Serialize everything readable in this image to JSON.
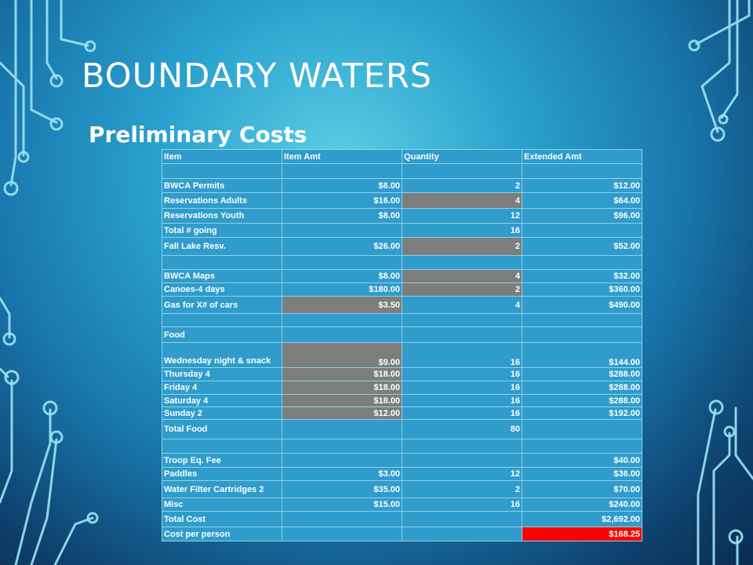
{
  "slide": {
    "title": "BOUNDARY WATERS",
    "subtitle": "Preliminary Costs"
  },
  "colors": {
    "highlight_gray": "#7d7d7d",
    "highlight_red": "#ff0000",
    "cell_blue": "#2f9ccb"
  },
  "table": {
    "headers": [
      "Item",
      "Item Amt",
      "Quantity",
      "Extended Amt"
    ],
    "rows": [
      {
        "item": "",
        "amt": "",
        "qty": "",
        "ext": "",
        "h": 19
      },
      {
        "item": "BWCA Permits",
        "amt": "$6.00",
        "qty": "2",
        "ext": "$12.00",
        "h": 18
      },
      {
        "item": "Reservations Adults",
        "amt": "$16.00",
        "qty": "4",
        "ext": "$64.00",
        "h": 20,
        "gray": [
          "qty"
        ]
      },
      {
        "item": "Reservations Youth",
        "amt": "$8.00",
        "qty": "12",
        "ext": "$96.00",
        "h": 19
      },
      {
        "item": "Total # going",
        "amt": "",
        "qty": "16",
        "ext": "",
        "h": 18
      },
      {
        "item": "Fall Lake Resv.",
        "amt": "$26.00",
        "qty": "2",
        "ext": "$52.00",
        "h": 23,
        "gray": [
          "qty"
        ]
      },
      {
        "item": "",
        "amt": "",
        "qty": "",
        "ext": "",
        "h": 18
      },
      {
        "item": "BWCA Maps",
        "amt": "$8.00",
        "qty": "4",
        "ext": "$32.00",
        "h": 17,
        "gray": [
          "qty"
        ]
      },
      {
        "item": "Canoes-4 days",
        "amt": "$180.00",
        "qty": "2",
        "ext": "$360.00",
        "h": 17,
        "gray": [
          "qty"
        ]
      },
      {
        "item": "Gas for X# of cars",
        "amt": "$3.50",
        "qty": "4",
        "ext": "$490.00",
        "h": 22,
        "gray": [
          "amt"
        ]
      },
      {
        "item": "",
        "amt": "",
        "qty": "",
        "ext": "",
        "h": 17
      },
      {
        "item": "Food",
        "amt": "",
        "qty": "",
        "ext": "",
        "h": 20
      },
      {
        "item": "Wednesday night & snack",
        "amt": "$9.00",
        "qty": "16",
        "ext": "$144.00",
        "h": 32,
        "gray": [
          "amt"
        ],
        "wrap": true
      },
      {
        "item": "Thursday 4",
        "amt": "$18.00",
        "qty": "16",
        "ext": "$288.00",
        "h": 17,
        "gray": [
          "amt"
        ]
      },
      {
        "item": "Friday 4",
        "amt": "$18.00",
        "qty": "16",
        "ext": "$288.00",
        "h": 17,
        "gray": [
          "amt"
        ]
      },
      {
        "item": "Saturday 4",
        "amt": "$18.00",
        "qty": "16",
        "ext": "$288.00",
        "h": 16,
        "gray": [
          "amt"
        ]
      },
      {
        "item": "Sunday 2",
        "amt": "$12.00",
        "qty": "16",
        "ext": "$192.00",
        "h": 16,
        "gray": [
          "amt"
        ]
      },
      {
        "item": "Total Food",
        "amt": "",
        "qty": "80",
        "ext": "",
        "h": 25
      },
      {
        "item": "",
        "amt": "",
        "qty": "",
        "ext": "",
        "h": 18
      },
      {
        "item": "Troop Eq. Fee",
        "amt": "",
        "qty": "",
        "ext": "$40.00",
        "h": 18
      },
      {
        "item": "Paddles",
        "amt": "$3.00",
        "qty": "12",
        "ext": "$36.00",
        "h": 17
      },
      {
        "item": "Water Filter Cartridges 2",
        "amt": "$35.00",
        "qty": "2",
        "ext": "$70.00",
        "h": 22
      },
      {
        "item": "Misc",
        "amt": "$15.00",
        "qty": "16",
        "ext": "$240.00",
        "h": 17
      },
      {
        "item": "Total Cost",
        "amt": "",
        "qty": "",
        "ext": "$2,692.00",
        "h": 20
      },
      {
        "item": "Cost per person",
        "amt": "",
        "qty": "",
        "ext": "$168.25",
        "h": 18,
        "red": [
          "ext"
        ]
      }
    ]
  }
}
